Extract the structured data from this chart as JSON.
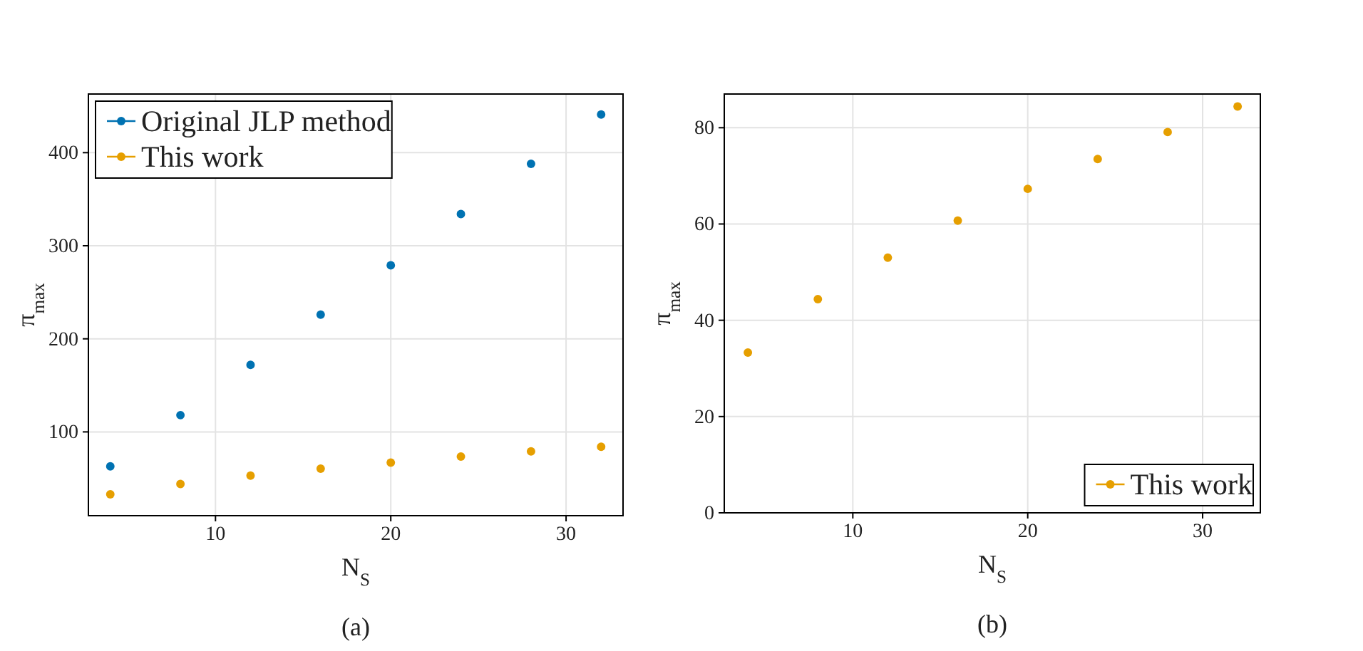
{
  "chart_data": [
    {
      "type": "scatter",
      "x": [
        4,
        8,
        12,
        16,
        20,
        24,
        28,
        32
      ],
      "series": [
        {
          "name": "Original JLP method",
          "color": "#0072b2",
          "values": [
            63,
            118,
            172,
            226,
            279,
            334,
            388,
            441
          ]
        },
        {
          "name": "This work",
          "color": "#e69f00",
          "values": [
            33,
            44,
            53,
            60.5,
            67,
            73.5,
            79,
            84
          ]
        }
      ],
      "xlim": [
        2.75,
        33.25
      ],
      "xticks": [
        10,
        20,
        30
      ],
      "ylim": [
        10,
        463
      ],
      "yticks": [
        100,
        200,
        300,
        400
      ],
      "xlabel": "N$_{S}$",
      "ylabel": "π$_{max}$",
      "grid": true,
      "legend": "top left",
      "marker": "circle",
      "annotations": [
        "(a)"
      ]
    },
    {
      "type": "scatter",
      "x": [
        4,
        8,
        12,
        16,
        20,
        24,
        28,
        32
      ],
      "series": [
        {
          "name": "This work",
          "color": "#e69f00",
          "values": [
            33.3,
            44.4,
            53,
            60.7,
            67.3,
            73.5,
            79.1,
            84.4
          ]
        }
      ],
      "xlim": [
        2.65,
        33.3
      ],
      "xticks": [
        10,
        20,
        30
      ],
      "ylim": [
        0,
        87
      ],
      "yticks": [
        0,
        20,
        40,
        60,
        80
      ],
      "xlabel": "N$_{S}$",
      "ylabel": "π$_{max}$",
      "grid": true,
      "legend": "bottom right",
      "marker": "circle",
      "annotations": [
        "(b)"
      ]
    }
  ]
}
